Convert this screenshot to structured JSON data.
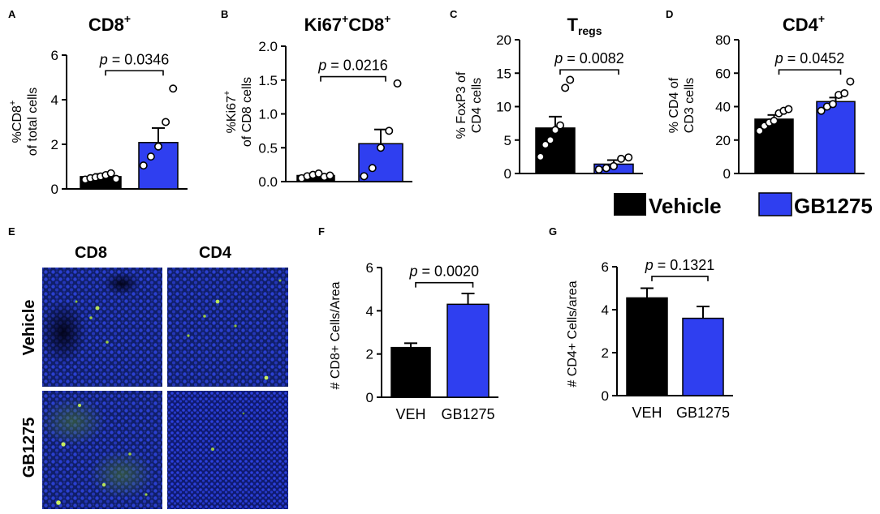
{
  "legend": {
    "items": [
      {
        "label": "Vehicle",
        "color": "#000000"
      },
      {
        "label": "GB1275",
        "color": "#2f3ff0"
      }
    ]
  },
  "microscopy": {
    "panel_letter": "E",
    "columns": [
      "CD8",
      "CD4"
    ],
    "rows": [
      "Vehicle",
      "GB1275"
    ]
  },
  "chart_data": [
    {
      "panel_letter": "A",
      "type": "bar",
      "title": "CD8",
      "title_sup": "+",
      "ylabel_lines": [
        "%CD8",
        "of total cells"
      ],
      "ylabel_sup": "+",
      "categories": [
        "Vehicle",
        "GB1275"
      ],
      "values": [
        0.55,
        2.08
      ],
      "errors": [
        0.12,
        0.65
      ],
      "points": [
        [
          0.42,
          0.48,
          0.52,
          0.56,
          0.62,
          0.7,
          0.45
        ],
        [
          1.05,
          1.45,
          1.9,
          3.0,
          4.5
        ]
      ],
      "ylim": [
        0,
        6
      ],
      "yticks": [
        0,
        2,
        4,
        6
      ],
      "pvalue": "= 0.0346",
      "bracket_y": 5.3,
      "show_category_labels": false
    },
    {
      "panel_letter": "B",
      "type": "bar",
      "title": "Ki67",
      "title_sup": "+",
      "title_2": "CD8",
      "title_2_sup": "+",
      "ylabel_lines": [
        "%Ki67",
        "of CD8 cells"
      ],
      "ylabel_sup": "+",
      "categories": [
        "Vehicle",
        "GB1275"
      ],
      "values": [
        0.09,
        0.56
      ],
      "errors": [
        0.03,
        0.21
      ],
      "points": [
        [
          0.05,
          0.08,
          0.1,
          0.12,
          0.07,
          0.09
        ],
        [
          0.08,
          0.2,
          0.5,
          0.75,
          1.45
        ]
      ],
      "ylim": [
        0,
        2.0
      ],
      "yticks": [
        0.0,
        0.5,
        1.0,
        1.5,
        2.0
      ],
      "tick_decimals": 1,
      "pvalue": "= 0.0216",
      "bracket_y": 1.55,
      "show_category_labels": false
    },
    {
      "panel_letter": "C",
      "type": "bar",
      "title": "T",
      "title_sub": "regs",
      "ylabel_lines": [
        "% FoxP3 of",
        "CD4 cells"
      ],
      "ylabel_sup": "+",
      "categories": [
        "Vehicle",
        "GB1275"
      ],
      "values": [
        6.8,
        1.4
      ],
      "errors": [
        1.7,
        0.6
      ],
      "points": [
        [
          2.5,
          4.3,
          5.0,
          6.5,
          7.2,
          12.8,
          14.0
        ],
        [
          0.6,
          0.8,
          1.1,
          2.2,
          2.4
        ]
      ],
      "ylim": [
        0,
        20
      ],
      "yticks": [
        0,
        5,
        10,
        15,
        20
      ],
      "pvalue": "= 0.0082",
      "bracket_y": 15.5,
      "show_category_labels": false
    },
    {
      "panel_letter": "D",
      "type": "bar",
      "title": "CD4",
      "title_sup": "+",
      "ylabel_lines": [
        "% CD4 of",
        "CD3 cells"
      ],
      "ylabel_sup": "+",
      "categories": [
        "Vehicle",
        "GB1275"
      ],
      "values": [
        32.5,
        43.0
      ],
      "errors": [
        2.5,
        2.4
      ],
      "points": [
        [
          25.5,
          28.5,
          30.5,
          31.5,
          36.0,
          37.5,
          38.5
        ],
        [
          37.5,
          40.0,
          41.5,
          47.0,
          48.0,
          55.0
        ]
      ],
      "ylim": [
        0,
        80
      ],
      "yticks": [
        0,
        20,
        40,
        60,
        80
      ],
      "pvalue": "= 0.0452",
      "bracket_y": 62,
      "show_category_labels": false
    },
    {
      "panel_letter": "F",
      "type": "bar",
      "ylabel_lines": [
        "# CD8+ Cells/Area"
      ],
      "categories": [
        "VEH",
        "GB1275"
      ],
      "values": [
        2.3,
        4.3
      ],
      "errors": [
        0.2,
        0.5
      ],
      "ylim": [
        0,
        6
      ],
      "yticks": [
        0,
        2,
        4,
        6
      ],
      "pvalue": "= 0.0020",
      "bracket_y": 5.3,
      "show_category_labels": true
    },
    {
      "panel_letter": "G",
      "type": "bar",
      "ylabel_lines": [
        "# CD4+ Cells/area"
      ],
      "categories": [
        "VEH",
        "GB1275"
      ],
      "values": [
        4.55,
        3.6
      ],
      "errors": [
        0.45,
        0.55
      ],
      "ylim": [
        0,
        6
      ],
      "yticks": [
        0,
        2,
        4,
        6
      ],
      "pvalue": "= 0.1321",
      "bracket_y": 5.55,
      "show_category_labels": true
    }
  ]
}
